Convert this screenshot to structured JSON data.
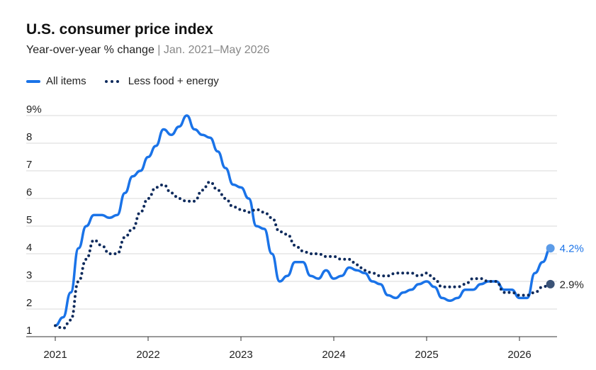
{
  "chart_data": {
    "type": "line",
    "title": "U.S. consumer price index",
    "subtitle_main": "Year-over-year % change",
    "subtitle_sep": "|",
    "subtitle_range": "Jan. 2021–May 2026",
    "y_unit": "%",
    "ylim": [
      1,
      9
    ],
    "y_ticks": [
      1,
      2,
      3,
      4,
      5,
      6,
      7,
      8,
      9
    ],
    "y_tick_labels": [
      "1",
      "2",
      "3",
      "4",
      "5",
      "6",
      "7",
      "8",
      "9%"
    ],
    "xlim": [
      "2021-01",
      "2026-08"
    ],
    "x_ticks": [
      "2021",
      "2022",
      "2023",
      "2024",
      "2025",
      "2026"
    ],
    "grid": "horizontal",
    "legend_position": "top-left",
    "series": [
      {
        "name": "All items",
        "style": "solid",
        "color": "#1a73e8",
        "end_label": "4.2%",
        "x": [
          "2021-01",
          "2021-02",
          "2021-03",
          "2021-04",
          "2021-05",
          "2021-06",
          "2021-07",
          "2021-08",
          "2021-09",
          "2021-10",
          "2021-11",
          "2021-12",
          "2022-01",
          "2022-02",
          "2022-03",
          "2022-04",
          "2022-05",
          "2022-06",
          "2022-07",
          "2022-08",
          "2022-09",
          "2022-10",
          "2022-11",
          "2022-12",
          "2023-01",
          "2023-02",
          "2023-03",
          "2023-04",
          "2023-05",
          "2023-06",
          "2023-07",
          "2023-08",
          "2023-09",
          "2023-10",
          "2023-11",
          "2023-12",
          "2024-01",
          "2024-02",
          "2024-03",
          "2024-04",
          "2024-05",
          "2024-06",
          "2024-07",
          "2024-08",
          "2024-09",
          "2024-10",
          "2024-11",
          "2024-12",
          "2025-01",
          "2025-02",
          "2025-03",
          "2025-04",
          "2025-05",
          "2025-06",
          "2025-07",
          "2025-08",
          "2025-09",
          "2025-10",
          "2025-11",
          "2025-12",
          "2026-01",
          "2026-02",
          "2026-03",
          "2026-04",
          "2026-05"
        ],
        "values": [
          1.4,
          1.7,
          2.6,
          4.2,
          5.0,
          5.4,
          5.4,
          5.3,
          5.4,
          6.2,
          6.8,
          7.0,
          7.5,
          7.9,
          8.5,
          8.3,
          8.6,
          9.0,
          8.5,
          8.3,
          8.2,
          7.7,
          7.1,
          6.5,
          6.4,
          6.0,
          5.0,
          4.9,
          4.0,
          3.0,
          3.2,
          3.7,
          3.7,
          3.2,
          3.1,
          3.4,
          3.1,
          3.2,
          3.5,
          3.4,
          3.3,
          3.0,
          2.9,
          2.5,
          2.4,
          2.6,
          2.7,
          2.9,
          3.0,
          2.8,
          2.4,
          2.3,
          2.4,
          2.7,
          2.7,
          2.9,
          3.0,
          3.0,
          2.7,
          2.7,
          2.4,
          2.4,
          3.3,
          3.7,
          4.2
        ]
      },
      {
        "name": "Less food + energy",
        "style": "dotted",
        "color": "#0d2a5c",
        "end_label": "2.9%",
        "x": [
          "2021-01",
          "2021-02",
          "2021-03",
          "2021-04",
          "2021-05",
          "2021-06",
          "2021-07",
          "2021-08",
          "2021-09",
          "2021-10",
          "2021-11",
          "2021-12",
          "2022-01",
          "2022-02",
          "2022-03",
          "2022-04",
          "2022-05",
          "2022-06",
          "2022-07",
          "2022-08",
          "2022-09",
          "2022-10",
          "2022-11",
          "2022-12",
          "2023-01",
          "2023-02",
          "2023-03",
          "2023-04",
          "2023-05",
          "2023-06",
          "2023-07",
          "2023-08",
          "2023-09",
          "2023-10",
          "2023-11",
          "2023-12",
          "2024-01",
          "2024-02",
          "2024-03",
          "2024-04",
          "2024-05",
          "2024-06",
          "2024-07",
          "2024-08",
          "2024-09",
          "2024-10",
          "2024-11",
          "2024-12",
          "2025-01",
          "2025-02",
          "2025-03",
          "2025-04",
          "2025-05",
          "2025-06",
          "2025-07",
          "2025-08",
          "2025-09",
          "2025-10",
          "2025-11",
          "2025-12",
          "2026-01",
          "2026-02",
          "2026-03",
          "2026-04",
          "2026-05"
        ],
        "values": [
          1.4,
          1.3,
          1.6,
          3.0,
          3.8,
          4.5,
          4.3,
          4.0,
          4.0,
          4.6,
          4.9,
          5.5,
          6.0,
          6.4,
          6.5,
          6.2,
          6.0,
          5.9,
          5.9,
          6.3,
          6.6,
          6.3,
          6.0,
          5.7,
          5.6,
          5.5,
          5.6,
          5.5,
          5.3,
          4.8,
          4.7,
          4.3,
          4.1,
          4.0,
          4.0,
          3.9,
          3.9,
          3.8,
          3.8,
          3.6,
          3.4,
          3.3,
          3.2,
          3.2,
          3.3,
          3.3,
          3.3,
          3.2,
          3.3,
          3.1,
          2.8,
          2.8,
          2.8,
          2.9,
          3.1,
          3.1,
          3.0,
          3.0,
          2.6,
          2.6,
          2.5,
          2.5,
          2.6,
          2.8,
          2.9
        ]
      }
    ]
  }
}
